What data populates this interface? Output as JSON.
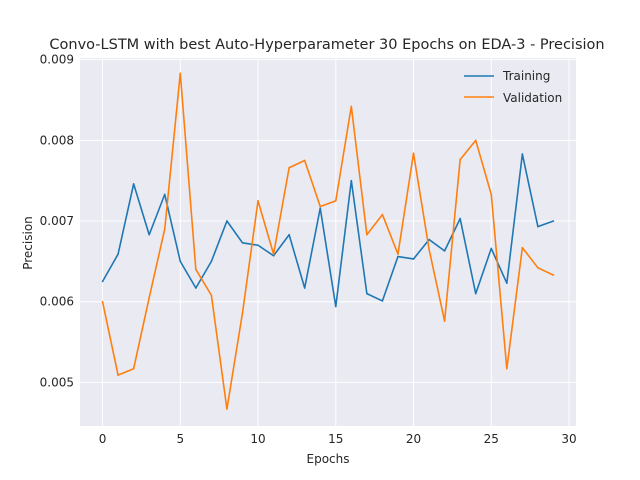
{
  "chart_data": {
    "type": "line",
    "title": "Convo-LSTM with best Auto-Hyperparameter 30 Epochs on EDA-3 - Precision",
    "xlabel": "Epochs",
    "ylabel": "Precision",
    "xlim": [
      -1.45,
      30.45
    ],
    "ylim": [
      0.00446,
      0.00902
    ],
    "x_ticks": [
      0,
      5,
      10,
      15,
      20,
      25,
      30
    ],
    "x_tick_labels": [
      "0",
      "5",
      "10",
      "15",
      "20",
      "25",
      "30"
    ],
    "y_ticks": [
      0.005,
      0.006,
      0.007,
      0.008,
      0.009
    ],
    "y_tick_labels": [
      "0.005",
      "0.006",
      "0.007",
      "0.008",
      "0.009"
    ],
    "grid": true,
    "legend_position": "top-right",
    "x": [
      0,
      1,
      2,
      3,
      4,
      5,
      6,
      7,
      8,
      9,
      10,
      11,
      12,
      13,
      14,
      15,
      16,
      17,
      18,
      19,
      20,
      21,
      22,
      23,
      24,
      25,
      26,
      27,
      28,
      29
    ],
    "series": [
      {
        "name": "Training",
        "color": "#1f77b4",
        "values": [
          0.00625,
          0.00659,
          0.00746,
          0.00683,
          0.00733,
          0.0065,
          0.00617,
          0.0065,
          0.007,
          0.00673,
          0.0067,
          0.00657,
          0.00683,
          0.00617,
          0.00716,
          0.00594,
          0.0075,
          0.0061,
          0.00601,
          0.00656,
          0.00653,
          0.00677,
          0.00663,
          0.00703,
          0.0061,
          0.00666,
          0.00623,
          0.00783,
          0.00693,
          0.007
        ]
      },
      {
        "name": "Validation",
        "color": "#ff7f0e",
        "values": [
          0.006,
          0.00509,
          0.00517,
          0.00605,
          0.0069,
          0.00883,
          0.0064,
          0.00608,
          0.00467,
          0.00586,
          0.00725,
          0.00659,
          0.00766,
          0.00775,
          0.00718,
          0.00725,
          0.00842,
          0.00683,
          0.00708,
          0.00659,
          0.00784,
          0.00665,
          0.00576,
          0.00776,
          0.008,
          0.00733,
          0.00517,
          0.00667,
          0.00642,
          0.00633
        ]
      }
    ]
  }
}
